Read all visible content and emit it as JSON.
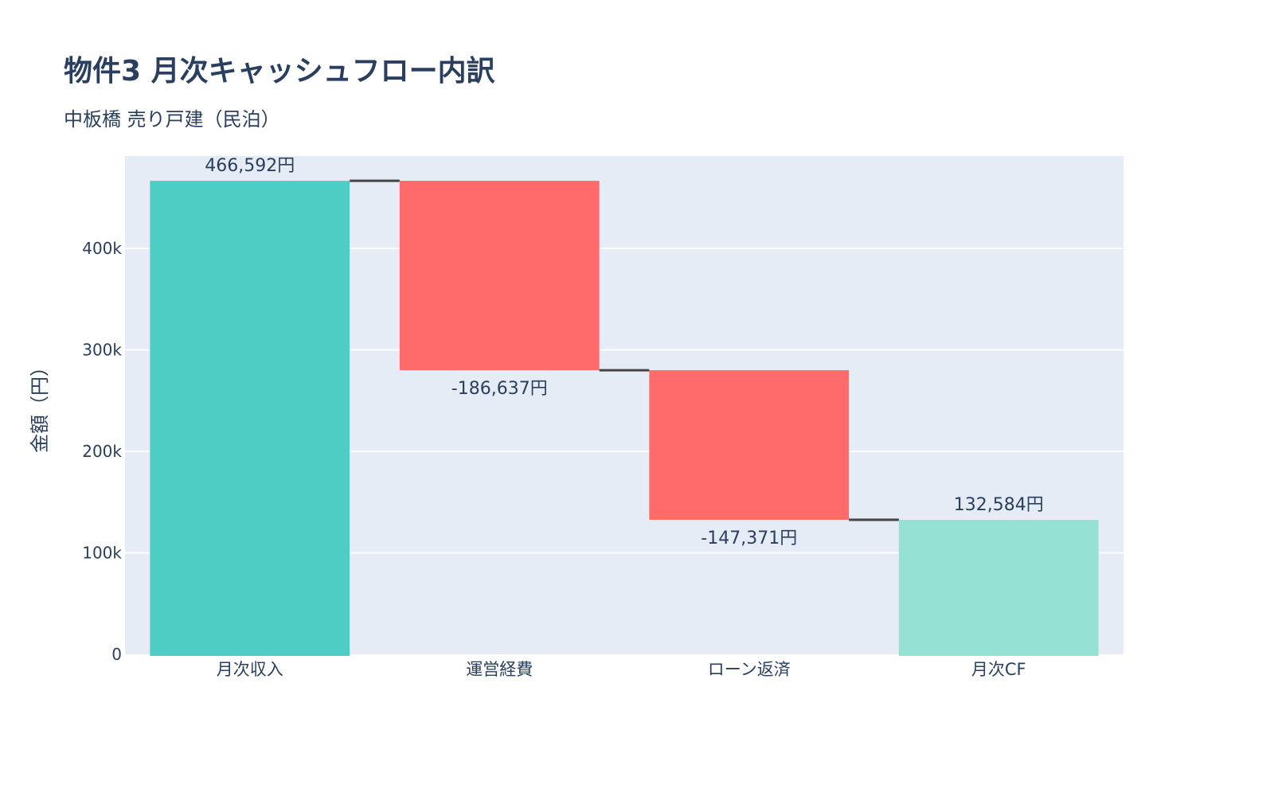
{
  "chart_data": {
    "type": "waterfall",
    "title": "物件3 月次キャッシュフロー内訳",
    "subtitle": "中板橋 売り戸建（民泊）",
    "xlabel": "",
    "ylabel": "金額（円）",
    "categories": [
      "月次収入",
      "運営経費",
      "ローン返済",
      "月次CF"
    ],
    "measures": [
      "absolute",
      "relative",
      "relative",
      "total"
    ],
    "values": [
      466592,
      -186637,
      -147371,
      132584
    ],
    "labels": [
      "466,592円",
      "-186,637円",
      "-147,371円",
      "132,584円"
    ],
    "ylim": [
      0,
      491000
    ],
    "yticks": [
      0,
      100000,
      200000,
      300000,
      400000
    ],
    "ytick_labels": [
      "0",
      "100k",
      "200k",
      "300k",
      "400k"
    ],
    "grid": true,
    "legend": "none",
    "colors": {
      "increasing": "#4ecdc4",
      "decreasing": "#ff6b6b",
      "total": "#95e1d3",
      "connector": "#444444",
      "plot_bg": "#e5ecf6",
      "grid": "#ffffff",
      "text": "#2a3f5f"
    }
  }
}
